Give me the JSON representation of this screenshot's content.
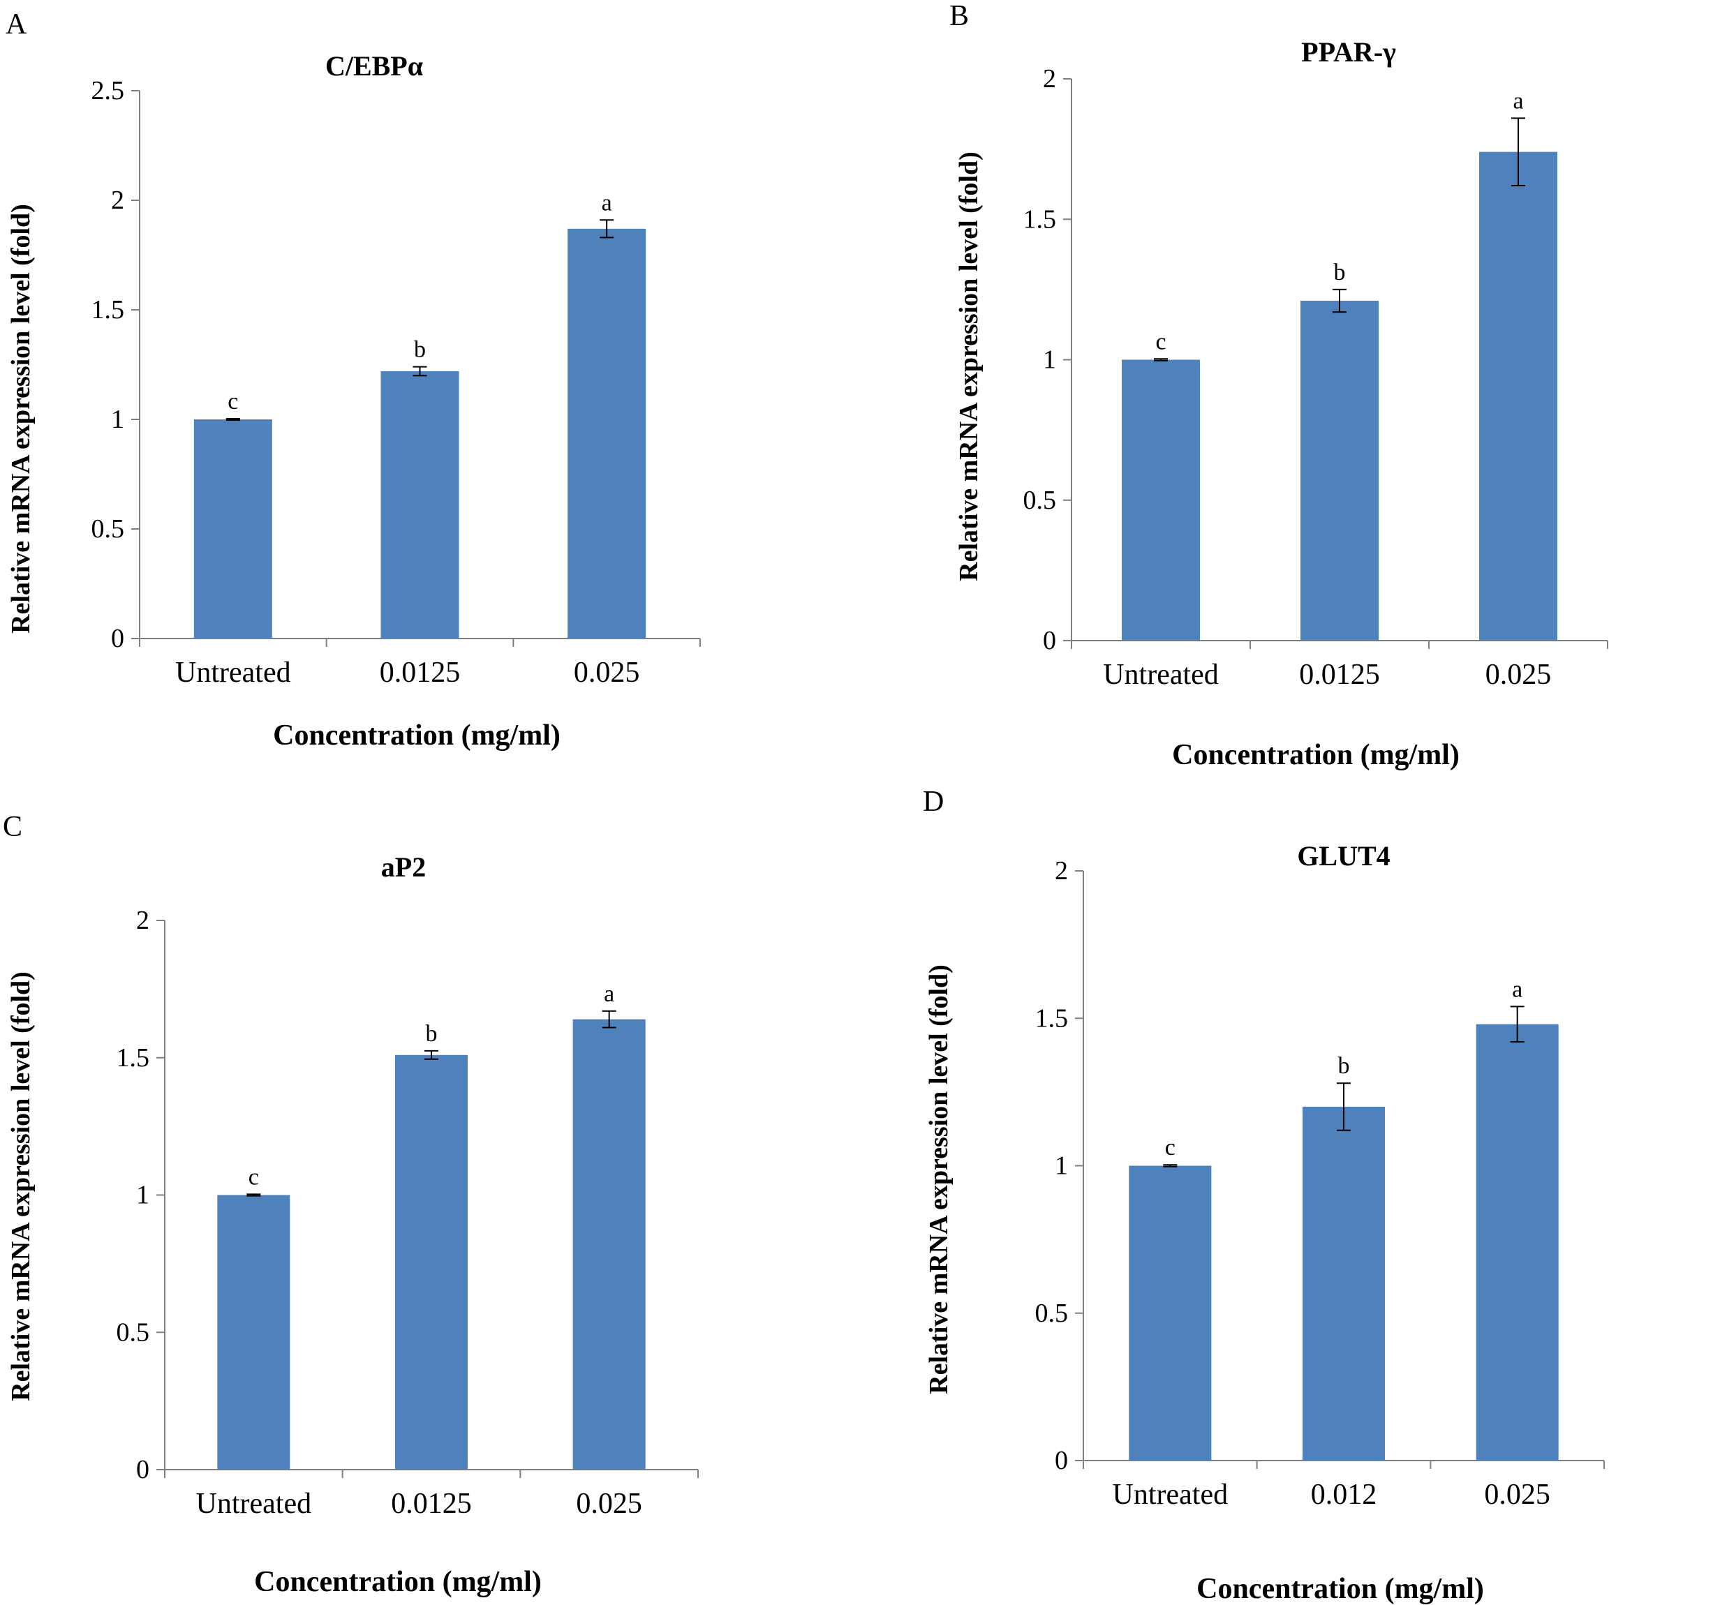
{
  "colors": {
    "bar": "#4f81bd",
    "axis": "#7f7f7f",
    "text": "#000000"
  },
  "chart_data": [
    {
      "panel_label": "A",
      "type": "bar",
      "title": "C/EBPα",
      "xlabel": "Concentration (mg/ml)",
      "ylabel": "Relative mRNA expression level (fold)",
      "categories": [
        "Untreated",
        "0.0125",
        "0.025"
      ],
      "values": [
        1.0,
        1.22,
        1.87
      ],
      "errors": [
        0.003,
        0.02,
        0.04
      ],
      "significance": [
        "c",
        "b",
        "a"
      ],
      "ylim": [
        0,
        2.5
      ],
      "yticks": [
        0,
        0.5,
        1,
        1.5,
        2,
        2.5
      ],
      "ytick_labels": [
        "0",
        "0.5",
        "1",
        "1.5",
        "2",
        "2.5"
      ]
    },
    {
      "panel_label": "B",
      "type": "bar",
      "title": "PPAR-γ",
      "xlabel": "Concentration (mg/ml)",
      "ylabel": "Relative mRNA expression level (fold)",
      "categories": [
        "Untreated",
        "0.0125",
        "0.025"
      ],
      "values": [
        1.0,
        1.21,
        1.74
      ],
      "errors": [
        0.003,
        0.04,
        0.12
      ],
      "significance": [
        "c",
        "b",
        "a"
      ],
      "ylim": [
        0,
        2
      ],
      "yticks": [
        0,
        0.5,
        1,
        1.5,
        2
      ],
      "ytick_labels": [
        "0",
        "0.5",
        "1",
        "1.5",
        "2"
      ]
    },
    {
      "panel_label": "C",
      "type": "bar",
      "title": "aP2",
      "xlabel": "Concentration (mg/ml)",
      "ylabel": "Relative mRNA expression level (fold)",
      "categories": [
        "Untreated",
        "0.0125",
        "0.025"
      ],
      "values": [
        1.0,
        1.51,
        1.64
      ],
      "errors": [
        0.003,
        0.015,
        0.03
      ],
      "significance": [
        "c",
        "b",
        "a"
      ],
      "ylim": [
        0,
        2
      ],
      "yticks": [
        0,
        0.5,
        1,
        1.5,
        2
      ],
      "ytick_labels": [
        "0",
        "0.5",
        "1",
        "1.5",
        "2"
      ]
    },
    {
      "panel_label": "D",
      "type": "bar",
      "title": "GLUT4",
      "xlabel": "Concentration (mg/ml)",
      "ylabel": "Relative mRNA expression level (fold)",
      "categories": [
        "Untreated",
        "0.012",
        "0.025"
      ],
      "values": [
        1.0,
        1.2,
        1.48
      ],
      "errors": [
        0.003,
        0.08,
        0.06
      ],
      "significance": [
        "c",
        "b",
        "a"
      ],
      "ylim": [
        0,
        2
      ],
      "yticks": [
        0,
        0.5,
        1,
        1.5,
        2
      ],
      "ytick_labels": [
        "0",
        "0.5",
        "1",
        "1.5",
        "2"
      ]
    }
  ]
}
